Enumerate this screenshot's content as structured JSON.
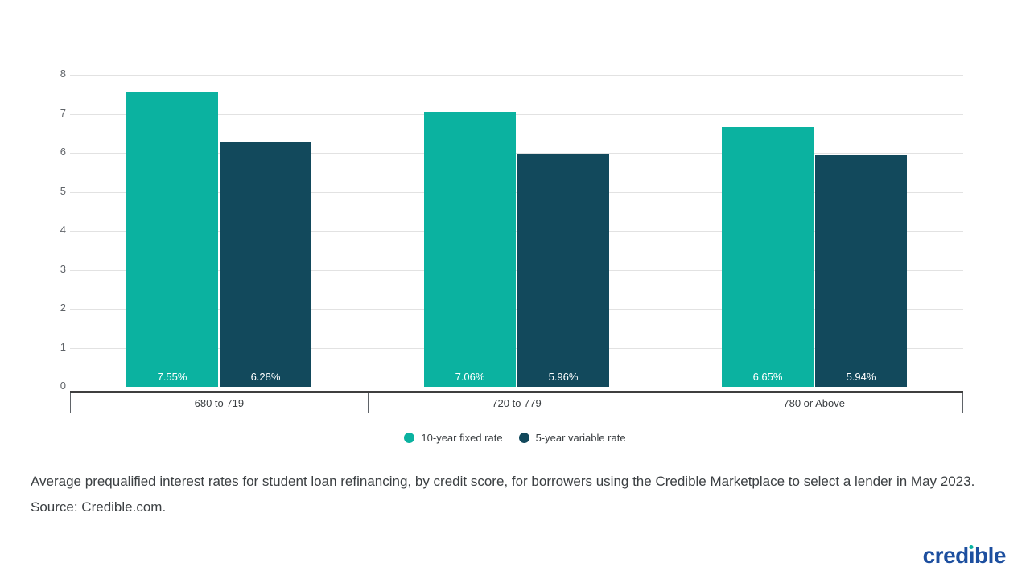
{
  "chart_data": {
    "type": "bar",
    "title": "",
    "xlabel": "",
    "ylabel": "",
    "categories": [
      "680 to 719",
      "720 to 779",
      "780 or Above"
    ],
    "series": [
      {
        "name": "10-year fixed rate",
        "color": "#0bb2a0",
        "values": [
          7.55,
          7.06,
          6.65
        ],
        "labels": [
          "7.55%",
          "7.06%",
          "6.65%"
        ]
      },
      {
        "name": "5-year variable rate",
        "color": "#12495c",
        "values": [
          6.28,
          5.96,
          5.94
        ],
        "labels": [
          "6.28%",
          "5.96%",
          "5.94%"
        ]
      }
    ],
    "ylim": [
      0,
      8
    ],
    "y_ticks": [
      0,
      1,
      2,
      3,
      4,
      5,
      6,
      7,
      8
    ],
    "grid": true,
    "legend_position": "bottom"
  },
  "caption": {
    "text": "Average prequalified interest rates for student loan refinancing, by credit score, for borrowers using the Credible Marketplace to select a lender in May 2023. Source: Credible.com."
  },
  "logo": {
    "text": "credible",
    "text_color": "#1d4f9f",
    "dot_color": "#0bb2a0"
  },
  "colors": {
    "grid": "#e2e2e2",
    "axis_line": "#3f3f3f",
    "tick_label": "#5f6368",
    "category_label": "#3c4043",
    "bar_label": "#ffffff",
    "caption": "#3c4043",
    "background": "#ffffff"
  }
}
